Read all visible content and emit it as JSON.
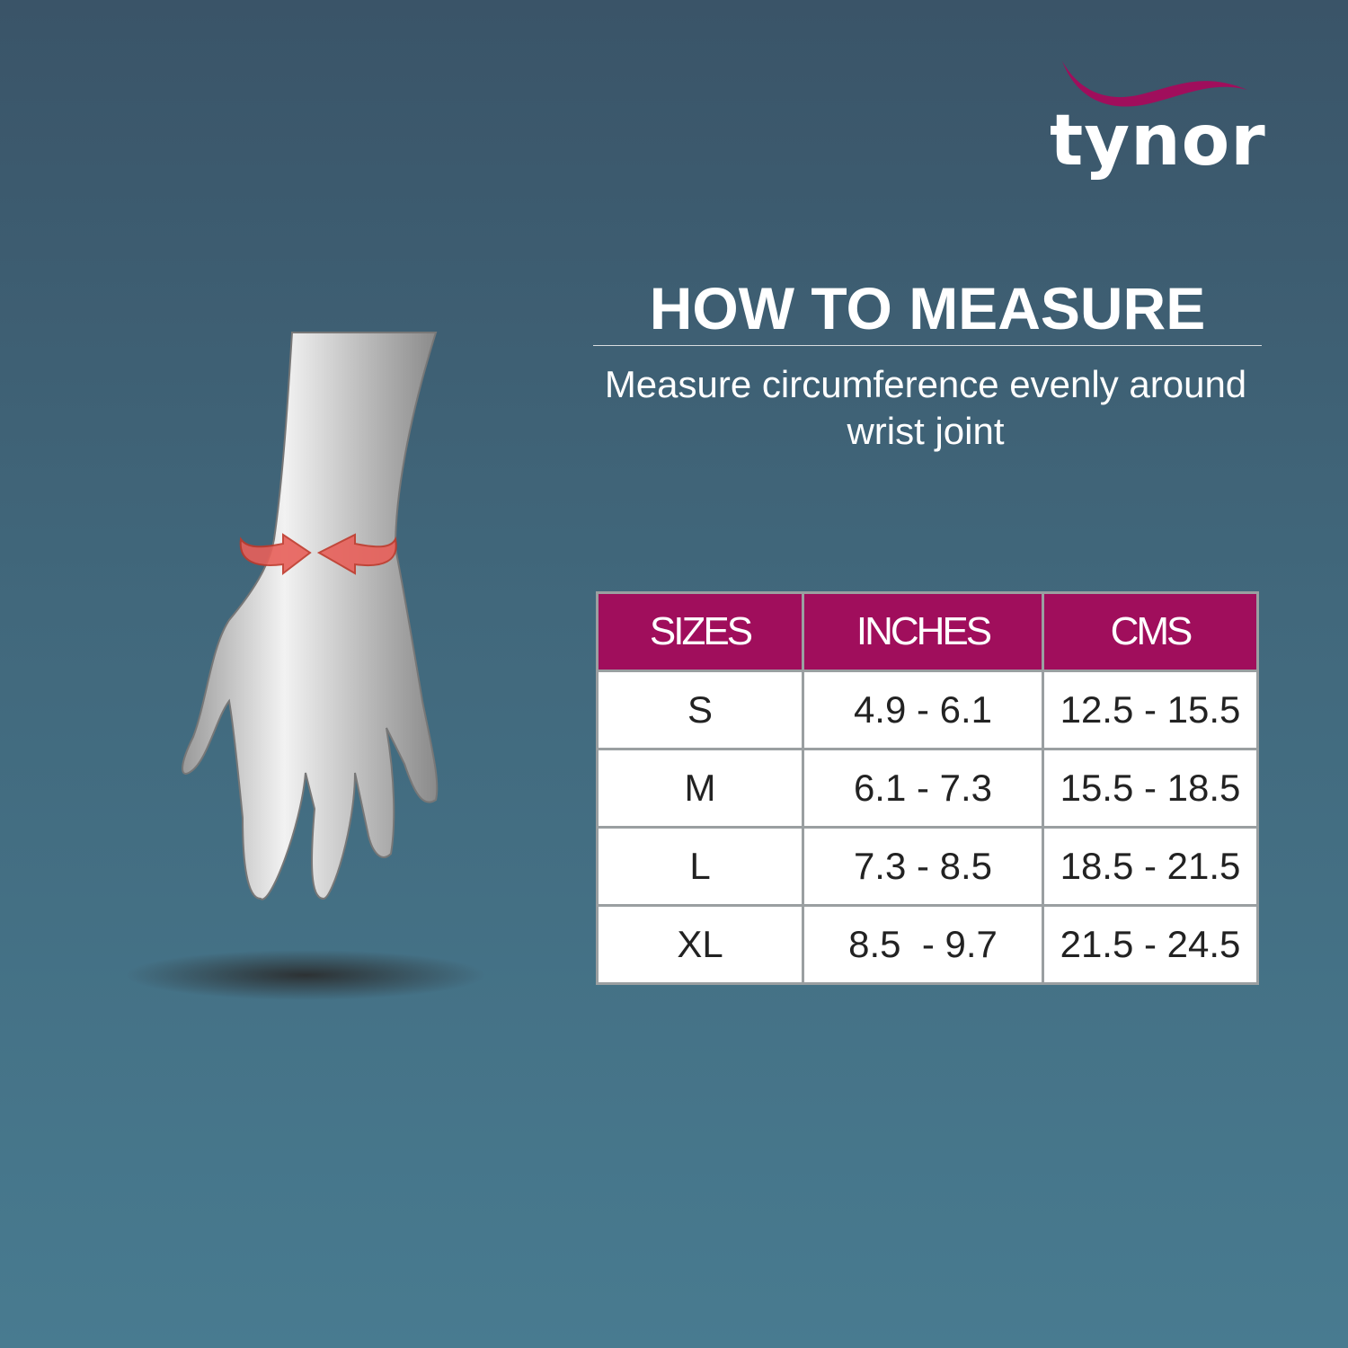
{
  "brand": {
    "logo_text": "tynor",
    "accent": "#a00e5c"
  },
  "heading": {
    "title": "HOW TO MEASURE",
    "subtitle_line1": "Measure circumference evenly around",
    "subtitle_line2": "wrist joint"
  },
  "illustration": {
    "icon": "wrist-measure-illustration",
    "arrow_color": "#e8605a"
  },
  "size_table": {
    "headers": [
      "SIZES",
      "INCHES",
      "CMS"
    ],
    "rows": [
      [
        "S",
        "4.9 - 6.1",
        "12.5 - 15.5"
      ],
      [
        "M",
        "6.1 - 7.3",
        "15.5 - 18.5"
      ],
      [
        "L",
        "7.3 - 8.5",
        "18.5 - 21.5"
      ],
      [
        "XL",
        "8.5  - 9.7",
        "21.5 - 24.5"
      ]
    ]
  }
}
